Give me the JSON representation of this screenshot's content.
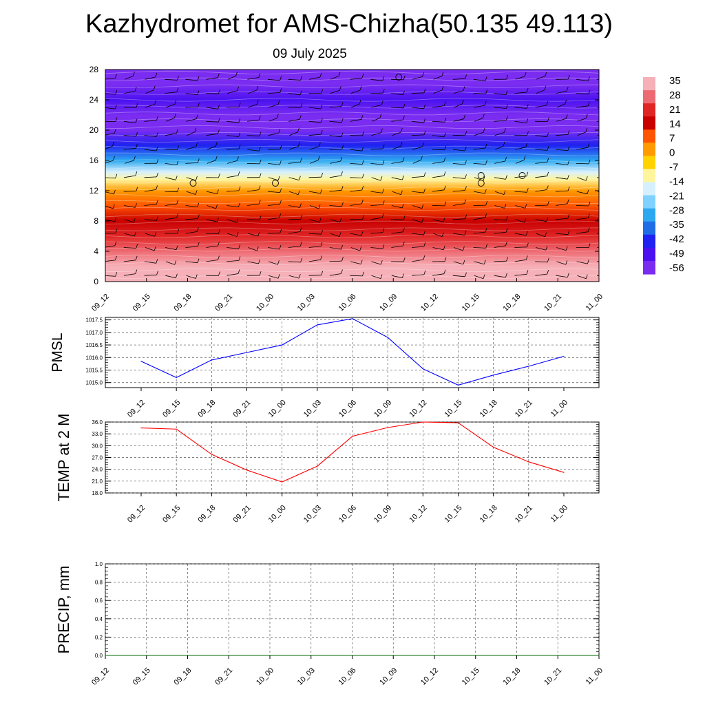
{
  "page": {
    "title": "Kazhydromet for AMS-Chizha(50.135 49.113)",
    "date": "09 July 2025"
  },
  "time_labels": [
    "09_12",
    "09_15",
    "09_18",
    "09_21",
    "10_00",
    "10_03",
    "10_06",
    "10_09",
    "10_12",
    "10_15",
    "10_18",
    "10_21",
    "11_00"
  ],
  "colors": {
    "pmsl_line": "#0000ff",
    "temp_line": "#ff0000",
    "precip_line": "#006400",
    "colorbar": [
      "#f6b0b8",
      "#ee6a72",
      "#e02525",
      "#c80000",
      "#ff5500",
      "#ff9a00",
      "#ffd200",
      "#fff59d",
      "#d6f0ff",
      "#7fd2ff",
      "#2ca8f0",
      "#1f6ee8",
      "#1f22f0",
      "#4b11f0",
      "#7a2cf0"
    ]
  },
  "chart_data": [
    {
      "type": "heatmap",
      "title": "Kazhydromet for AMS-Chizha(50.135 49.113)",
      "subtitle": "09 July 2025",
      "x": [
        "09_12",
        "09_15",
        "09_18",
        "09_21",
        "10_00",
        "10_03",
        "10_06",
        "10_09",
        "10_12",
        "10_15",
        "10_18",
        "10_21",
        "11_00"
      ],
      "y_ticks": [
        0,
        4,
        8,
        12,
        16,
        20,
        24,
        28
      ],
      "ylim": [
        0,
        28
      ],
      "colorbar_labels": [
        "35",
        "28",
        "21",
        "14",
        "7",
        "0",
        "-7",
        "-14",
        "-21",
        "-28",
        "-35",
        "-42",
        "-49",
        "-56"
      ],
      "colorbar_range": [
        -60,
        38
      ],
      "temperature_profile": [
        {
          "level": 0,
          "value": 36
        },
        {
          "level": 2,
          "value": 32
        },
        {
          "level": 4,
          "value": 27
        },
        {
          "level": 6,
          "value": 22
        },
        {
          "level": 8,
          "value": 17
        },
        {
          "level": 10,
          "value": 10
        },
        {
          "level": 12,
          "value": 1
        },
        {
          "level": 13.5,
          "value": -10
        },
        {
          "level": 14.5,
          "value": -16
        },
        {
          "level": 16,
          "value": -28
        },
        {
          "level": 18,
          "value": -42
        },
        {
          "level": 20,
          "value": -55
        },
        {
          "level": 22,
          "value": -57
        },
        {
          "level": 24,
          "value": -53
        },
        {
          "level": 26,
          "value": -55
        },
        {
          "level": 28,
          "value": -58
        }
      ],
      "circles": [
        {
          "x": "09_18",
          "level": 13
        },
        {
          "x": "10_00",
          "level": 13
        },
        {
          "x": "10_09",
          "level": 27
        },
        {
          "x": "10_15",
          "level": 14
        },
        {
          "x": "10_15",
          "level": 13
        },
        {
          "x": "10_18",
          "level": 14
        }
      ]
    },
    {
      "type": "line",
      "ylabel": "PMSL",
      "x": [
        "09_12",
        "09_15",
        "09_18",
        "09_21",
        "10_00",
        "10_03",
        "10_06",
        "10_09",
        "10_12",
        "10_15",
        "10_18",
        "10_21",
        "11_00"
      ],
      "y_ticks": [
        "1015.0",
        "1015.5",
        "1016.0",
        "1016.5",
        "1017.0",
        "1017.5"
      ],
      "ylim": [
        1014.8,
        1017.6
      ],
      "grid": true,
      "series": [
        {
          "values": [
            1015.85,
            1015.2,
            1015.9,
            1016.2,
            1016.5,
            1017.3,
            1017.55,
            1016.8,
            1015.55,
            1014.9,
            1015.3,
            1015.65,
            1016.05
          ]
        }
      ]
    },
    {
      "type": "line",
      "ylabel": "TEMP at 2 M",
      "x": [
        "09_12",
        "09_15",
        "09_18",
        "09_21",
        "10_00",
        "10_03",
        "10_06",
        "10_09",
        "10_12",
        "10_15",
        "10_18",
        "10_21",
        "11_00"
      ],
      "y_ticks": [
        "18.0",
        "21.0",
        "24.0",
        "27.0",
        "30.0",
        "33.0",
        "36.0"
      ],
      "ylim": [
        18,
        36
      ],
      "grid": true,
      "series": [
        {
          "values": [
            34.5,
            34.2,
            27.8,
            23.8,
            20.8,
            24.8,
            32.4,
            34.6,
            36.0,
            35.8,
            29.6,
            25.9,
            23.2
          ]
        }
      ]
    },
    {
      "type": "line",
      "ylabel": "PRECIP, mm",
      "x": [
        "09_12",
        "09_15",
        "09_18",
        "09_21",
        "10_00",
        "10_03",
        "10_06",
        "10_09",
        "10_12",
        "10_15",
        "10_18",
        "10_21",
        "11_00"
      ],
      "y_ticks": [
        "0.0",
        "0.2",
        "0.4",
        "0.6",
        "0.8",
        "1.0"
      ],
      "ylim": [
        0,
        1
      ],
      "grid": true,
      "series": [
        {
          "values": [
            0,
            0,
            0,
            0,
            0,
            0,
            0,
            0,
            0,
            0,
            0,
            0,
            0
          ]
        }
      ]
    }
  ]
}
